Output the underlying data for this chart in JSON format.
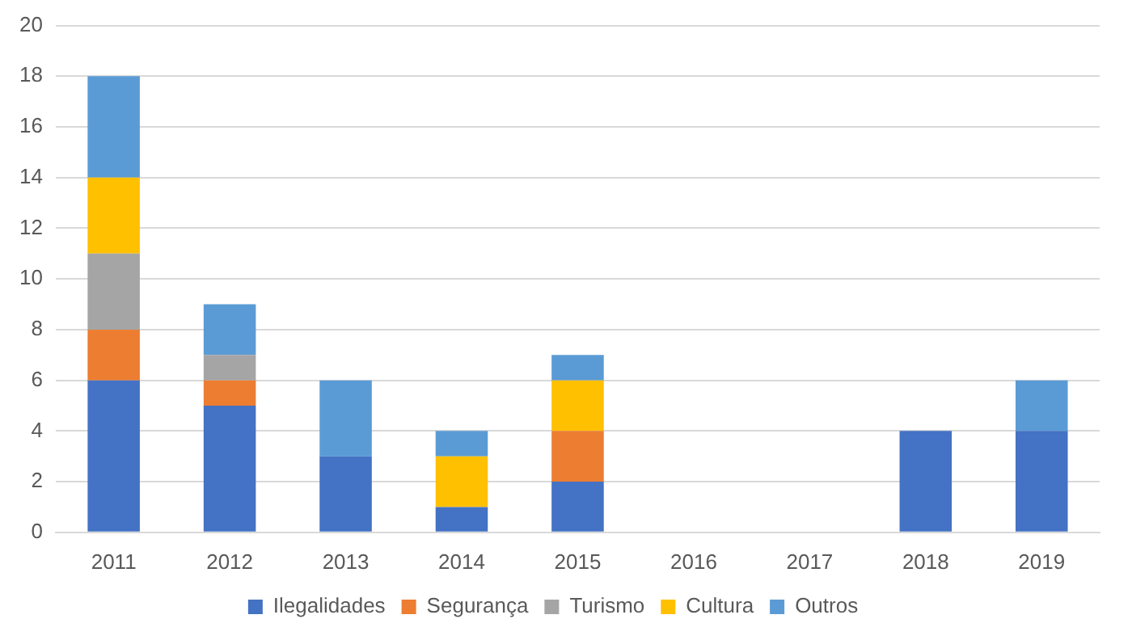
{
  "chart_data": {
    "type": "bar",
    "stacked": true,
    "categories": [
      "2011",
      "2012",
      "2013",
      "2014",
      "2015",
      "2016",
      "2017",
      "2018",
      "2019"
    ],
    "series": [
      {
        "name": "Ilegalidades",
        "color": "#4472c4",
        "values": [
          6,
          5,
          3,
          1,
          2,
          0,
          0,
          4,
          4
        ]
      },
      {
        "name": "Segurança",
        "color": "#ed7d31",
        "values": [
          2,
          1,
          0,
          0,
          2,
          0,
          0,
          0,
          0
        ]
      },
      {
        "name": "Turismo",
        "color": "#a5a5a5",
        "values": [
          3,
          1,
          0,
          0,
          0,
          0,
          0,
          0,
          0
        ]
      },
      {
        "name": "Cultura",
        "color": "#ffc000",
        "values": [
          3,
          0,
          0,
          2,
          2,
          0,
          0,
          0,
          0
        ]
      },
      {
        "name": "Outros",
        "color": "#5b9bd5",
        "values": [
          4,
          2,
          3,
          1,
          1,
          0,
          0,
          0,
          2
        ]
      }
    ],
    "ylim": [
      0,
      20
    ],
    "yticks": [
      0,
      2,
      4,
      6,
      8,
      10,
      12,
      14,
      16,
      18,
      20
    ],
    "grid": "y",
    "legend": "bottom"
  }
}
